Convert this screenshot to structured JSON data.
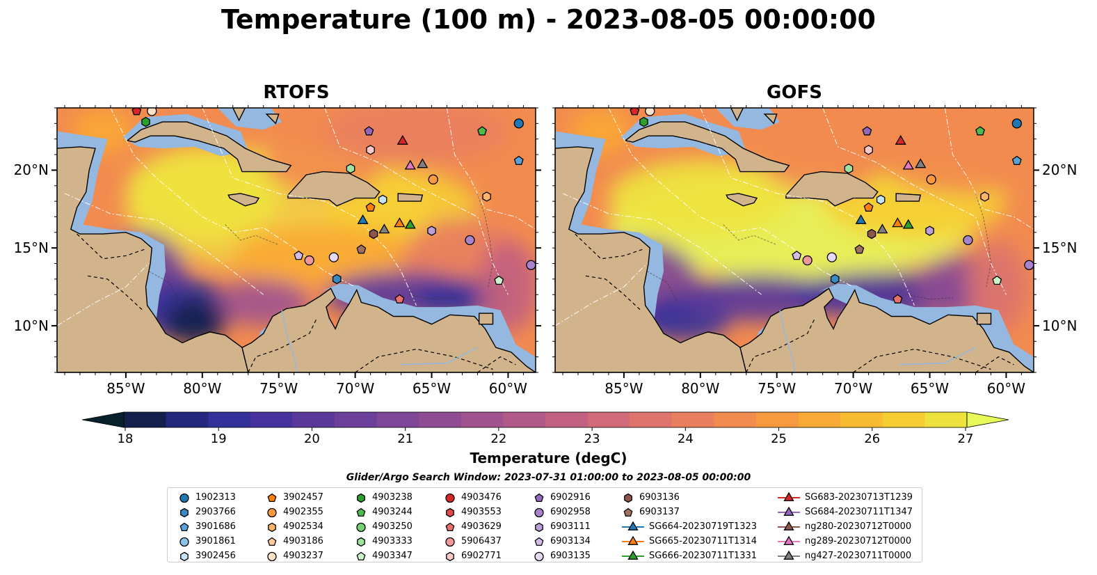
{
  "title": "Temperature (100 m) - 2023-08-05 00:00:00",
  "panels": [
    {
      "title": "RTOFS",
      "variant": "rtofs"
    },
    {
      "title": "GOFS",
      "variant": "gofs"
    }
  ],
  "axes": {
    "lon_ticks": [
      "85°W",
      "80°W",
      "75°W",
      "70°W",
      "65°W",
      "60°W"
    ],
    "lat_ticks": [
      "20°N",
      "15°N",
      "10°N"
    ],
    "lon_range": [
      -89.5,
      -58.2
    ],
    "lat_range": [
      7.0,
      24.0
    ],
    "lon_values": [
      -85,
      -80,
      -75,
      -70,
      -65,
      -60
    ],
    "lat_values": [
      20,
      15,
      10
    ]
  },
  "colorbar": {
    "label": "Temperature (degC)",
    "ticks": [
      "18",
      "19",
      "20",
      "21",
      "22",
      "23",
      "24",
      "25",
      "26",
      "27"
    ],
    "min": 18,
    "max": 27,
    "extend": "both",
    "colormap": "thermal",
    "colors": [
      "#07212c",
      "#151f4c",
      "#23277e",
      "#33309a",
      "#46329c",
      "#5a389b",
      "#6b3f9a",
      "#7e4697",
      "#8f4c93",
      "#a0538f",
      "#b15a89",
      "#c26181",
      "#d16a78",
      "#de746c",
      "#e97f5e",
      "#f28b4f",
      "#f7993f",
      "#f9a935",
      "#f9bb31",
      "#f6ce33",
      "#eee33e",
      "#e7f859"
    ]
  },
  "search_window": "Glider/Argo Search Window: 2023-07-31 01:00:00 to 2023-08-05 00:00:00",
  "legend": [
    {
      "label": "1902313",
      "marker": "circle",
      "color": "#1f77b4"
    },
    {
      "label": "2903766",
      "marker": "hexagon",
      "color": "#3a8ac4"
    },
    {
      "label": "3901686",
      "marker": "pentagon",
      "color": "#5aa2d8"
    },
    {
      "label": "3901861",
      "marker": "circle",
      "color": "#8dc3e8"
    },
    {
      "label": "3902456",
      "marker": "hexagon",
      "color": "#c6e4f7"
    },
    {
      "label": "3902457",
      "marker": "pentagon",
      "color": "#ff7f0e"
    },
    {
      "label": "4902355",
      "marker": "circle",
      "color": "#ff9a40"
    },
    {
      "label": "4902534",
      "marker": "hexagon",
      "color": "#ffb46e"
    },
    {
      "label": "4903186",
      "marker": "pentagon",
      "color": "#ffcb9c"
    },
    {
      "label": "4903237",
      "marker": "circle",
      "color": "#ffe3c8"
    },
    {
      "label": "4903238",
      "marker": "hexagon",
      "color": "#2ca02c"
    },
    {
      "label": "4903244",
      "marker": "pentagon",
      "color": "#4cbb4c"
    },
    {
      "label": "4903250",
      "marker": "circle",
      "color": "#74d174"
    },
    {
      "label": "4903333",
      "marker": "hexagon",
      "color": "#9ee39e"
    },
    {
      "label": "4903347",
      "marker": "pentagon",
      "color": "#ccf5cc"
    },
    {
      "label": "4903476",
      "marker": "circle",
      "color": "#d62728"
    },
    {
      "label": "4903553",
      "marker": "hexagon",
      "color": "#e04a4a"
    },
    {
      "label": "4903629",
      "marker": "pentagon",
      "color": "#ea7070"
    },
    {
      "label": "5906437",
      "marker": "circle",
      "color": "#f39898"
    },
    {
      "label": "6902771",
      "marker": "hexagon",
      "color": "#fbc7c7"
    },
    {
      "label": "6902916",
      "marker": "pentagon",
      "color": "#9467bd"
    },
    {
      "label": "6902958",
      "marker": "circle",
      "color": "#a683cb"
    },
    {
      "label": "6903111",
      "marker": "hexagon",
      "color": "#bb9fd8"
    },
    {
      "label": "6903134",
      "marker": "pentagon",
      "color": "#d2bde6"
    },
    {
      "label": "6903135",
      "marker": "circle",
      "color": "#e6d9f3"
    },
    {
      "label": "6903136",
      "marker": "hexagon",
      "color": "#8c564b"
    },
    {
      "label": "6903137",
      "marker": "pentagon",
      "color": "#a0715e"
    },
    {
      "label": "SG664-20230719T1323",
      "marker": "triangle",
      "color": "#1f77b4",
      "line": true
    },
    {
      "label": "SG665-20230711T1314",
      "marker": "triangle",
      "color": "#ff7f0e",
      "line": true
    },
    {
      "label": "SG666-20230711T1331",
      "marker": "triangle",
      "color": "#2ca02c",
      "line": true
    },
    {
      "label": "SG683-20230713T1239",
      "marker": "triangle",
      "color": "#d62728",
      "line": true
    },
    {
      "label": "SG684-20230711T1347",
      "marker": "triangle",
      "color": "#9467bd",
      "line": true
    },
    {
      "label": "ng280-20230712T0000",
      "marker": "triangle",
      "color": "#8c564b",
      "line": true
    },
    {
      "label": "ng289-20230712T0000",
      "marker": "triangle",
      "color": "#e377c2",
      "line": true
    },
    {
      "label": "ng427-20230711T0000",
      "marker": "triangle",
      "color": "#7f7f7f",
      "line": true
    }
  ],
  "floats": [
    {
      "lon": -59.3,
      "lat": 23.0,
      "marker": "circle",
      "color": "#1f77b4"
    },
    {
      "lon": -59.3,
      "lat": 20.6,
      "marker": "pentagon",
      "color": "#5aa2d8"
    },
    {
      "lon": -61.7,
      "lat": 22.5,
      "marker": "pentagon",
      "color": "#4cbb4c"
    },
    {
      "lon": -83.7,
      "lat": 23.1,
      "marker": "hexagon",
      "color": "#2ca02c"
    },
    {
      "lon": -69.1,
      "lat": 22.5,
      "marker": "pentagon",
      "color": "#9467bd"
    },
    {
      "lon": -69.0,
      "lat": 21.3,
      "marker": "hexagon",
      "color": "#fbc7c7"
    },
    {
      "lon": -70.3,
      "lat": 20.1,
      "marker": "hexagon",
      "color": "#9ee39e"
    },
    {
      "lon": -64.9,
      "lat": 19.4,
      "marker": "circle",
      "color": "#ff9a40"
    },
    {
      "lon": -61.4,
      "lat": 18.3,
      "marker": "hexagon",
      "color": "#ffb46e"
    },
    {
      "lon": -69.0,
      "lat": 17.6,
      "marker": "pentagon",
      "color": "#ff7f0e"
    },
    {
      "lon": -68.2,
      "lat": 18.1,
      "marker": "hexagon",
      "color": "#c6e4f7"
    },
    {
      "lon": -68.8,
      "lat": 15.9,
      "marker": "hexagon",
      "color": "#8c564b"
    },
    {
      "lon": -69.6,
      "lat": 14.9,
      "marker": "pentagon",
      "color": "#a0715e"
    },
    {
      "lon": -62.5,
      "lat": 15.5,
      "marker": "circle",
      "color": "#a683cb"
    },
    {
      "lon": -58.5,
      "lat": 13.9,
      "marker": "circle",
      "color": "#a683cb"
    },
    {
      "lon": -60.6,
      "lat": 12.9,
      "marker": "pentagon",
      "color": "#ccf5cc"
    },
    {
      "lon": -73.7,
      "lat": 14.5,
      "marker": "pentagon",
      "color": "#d2bde6"
    },
    {
      "lon": -73.0,
      "lat": 14.2,
      "marker": "circle",
      "color": "#f39898"
    },
    {
      "lon": -71.4,
      "lat": 14.4,
      "marker": "circle",
      "color": "#e6d9f3"
    },
    {
      "lon": -71.2,
      "lat": 13.0,
      "marker": "hexagon",
      "color": "#3a8ac4"
    },
    {
      "lon": -67.1,
      "lat": 11.7,
      "marker": "pentagon",
      "color": "#ea7070"
    },
    {
      "lon": -65.0,
      "lat": 16.1,
      "marker": "hexagon",
      "color": "#bb9fd8"
    },
    {
      "lon": -83.3,
      "lat": 23.8,
      "marker": "circle",
      "color": "#ffe3c8"
    },
    {
      "lon": -84.3,
      "lat": 23.8,
      "marker": "pentagon",
      "color": "#d62728"
    }
  ],
  "gliders": [
    {
      "lon": -66.9,
      "lat": 21.8,
      "color": "#d62728"
    },
    {
      "lon": -66.4,
      "lat": 20.2,
      "color": "#e377c2"
    },
    {
      "lon": -65.6,
      "lat": 20.3,
      "color": "#7f7f7f"
    },
    {
      "lon": -69.5,
      "lat": 16.7,
      "color": "#1f77b4"
    },
    {
      "lon": -67.1,
      "lat": 16.5,
      "color": "#ff7f0e"
    },
    {
      "lon": -66.4,
      "lat": 16.4,
      "color": "#2ca02c"
    },
    {
      "lon": -68.1,
      "lat": 16.1,
      "color": "#7f7f7f"
    }
  ]
}
